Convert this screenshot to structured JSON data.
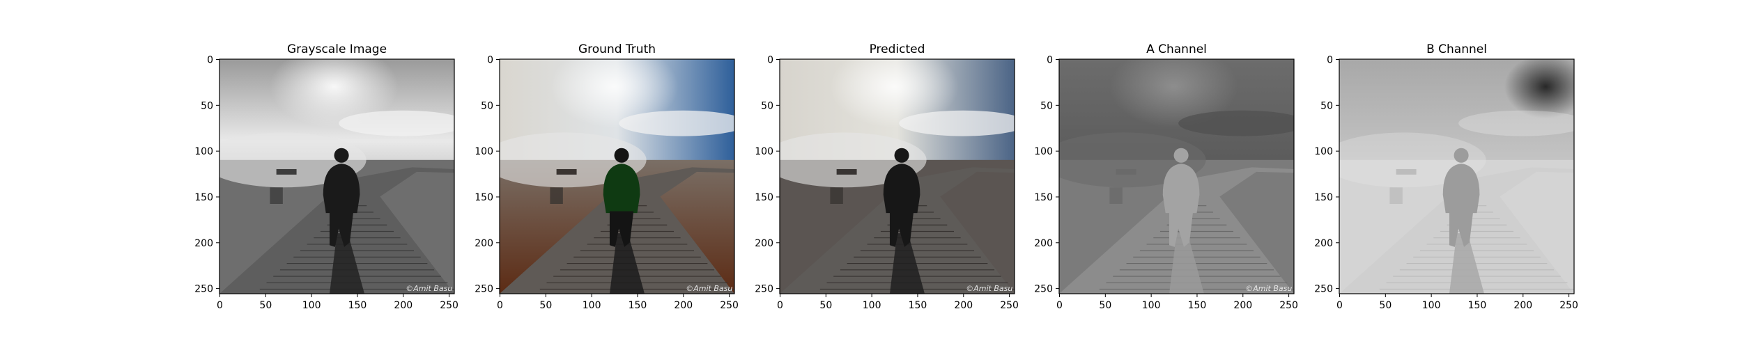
{
  "figure": {
    "panels": [
      {
        "id": "grayscale",
        "title": "Grayscale Image",
        "mode": "gray",
        "watermark": "©Amit Basu"
      },
      {
        "id": "ground-truth",
        "title": "Ground Truth",
        "mode": "color",
        "watermark": "©Amit Basu"
      },
      {
        "id": "predicted",
        "title": "Predicted",
        "mode": "muted",
        "watermark": "©Amit Basu"
      },
      {
        "id": "a-channel",
        "title": "A Channel",
        "mode": "achan",
        "watermark": "©Amit Basu"
      },
      {
        "id": "b-channel",
        "title": "B Channel",
        "mode": "bchan",
        "watermark": ""
      }
    ],
    "axis": {
      "x_ticks": [
        "0",
        "50",
        "100",
        "150",
        "200",
        "250"
      ],
      "y_ticks": [
        "0",
        "50",
        "100",
        "150",
        "200",
        "250"
      ],
      "xlim": [
        0,
        256
      ],
      "ylim": [
        0,
        256
      ]
    }
  }
}
